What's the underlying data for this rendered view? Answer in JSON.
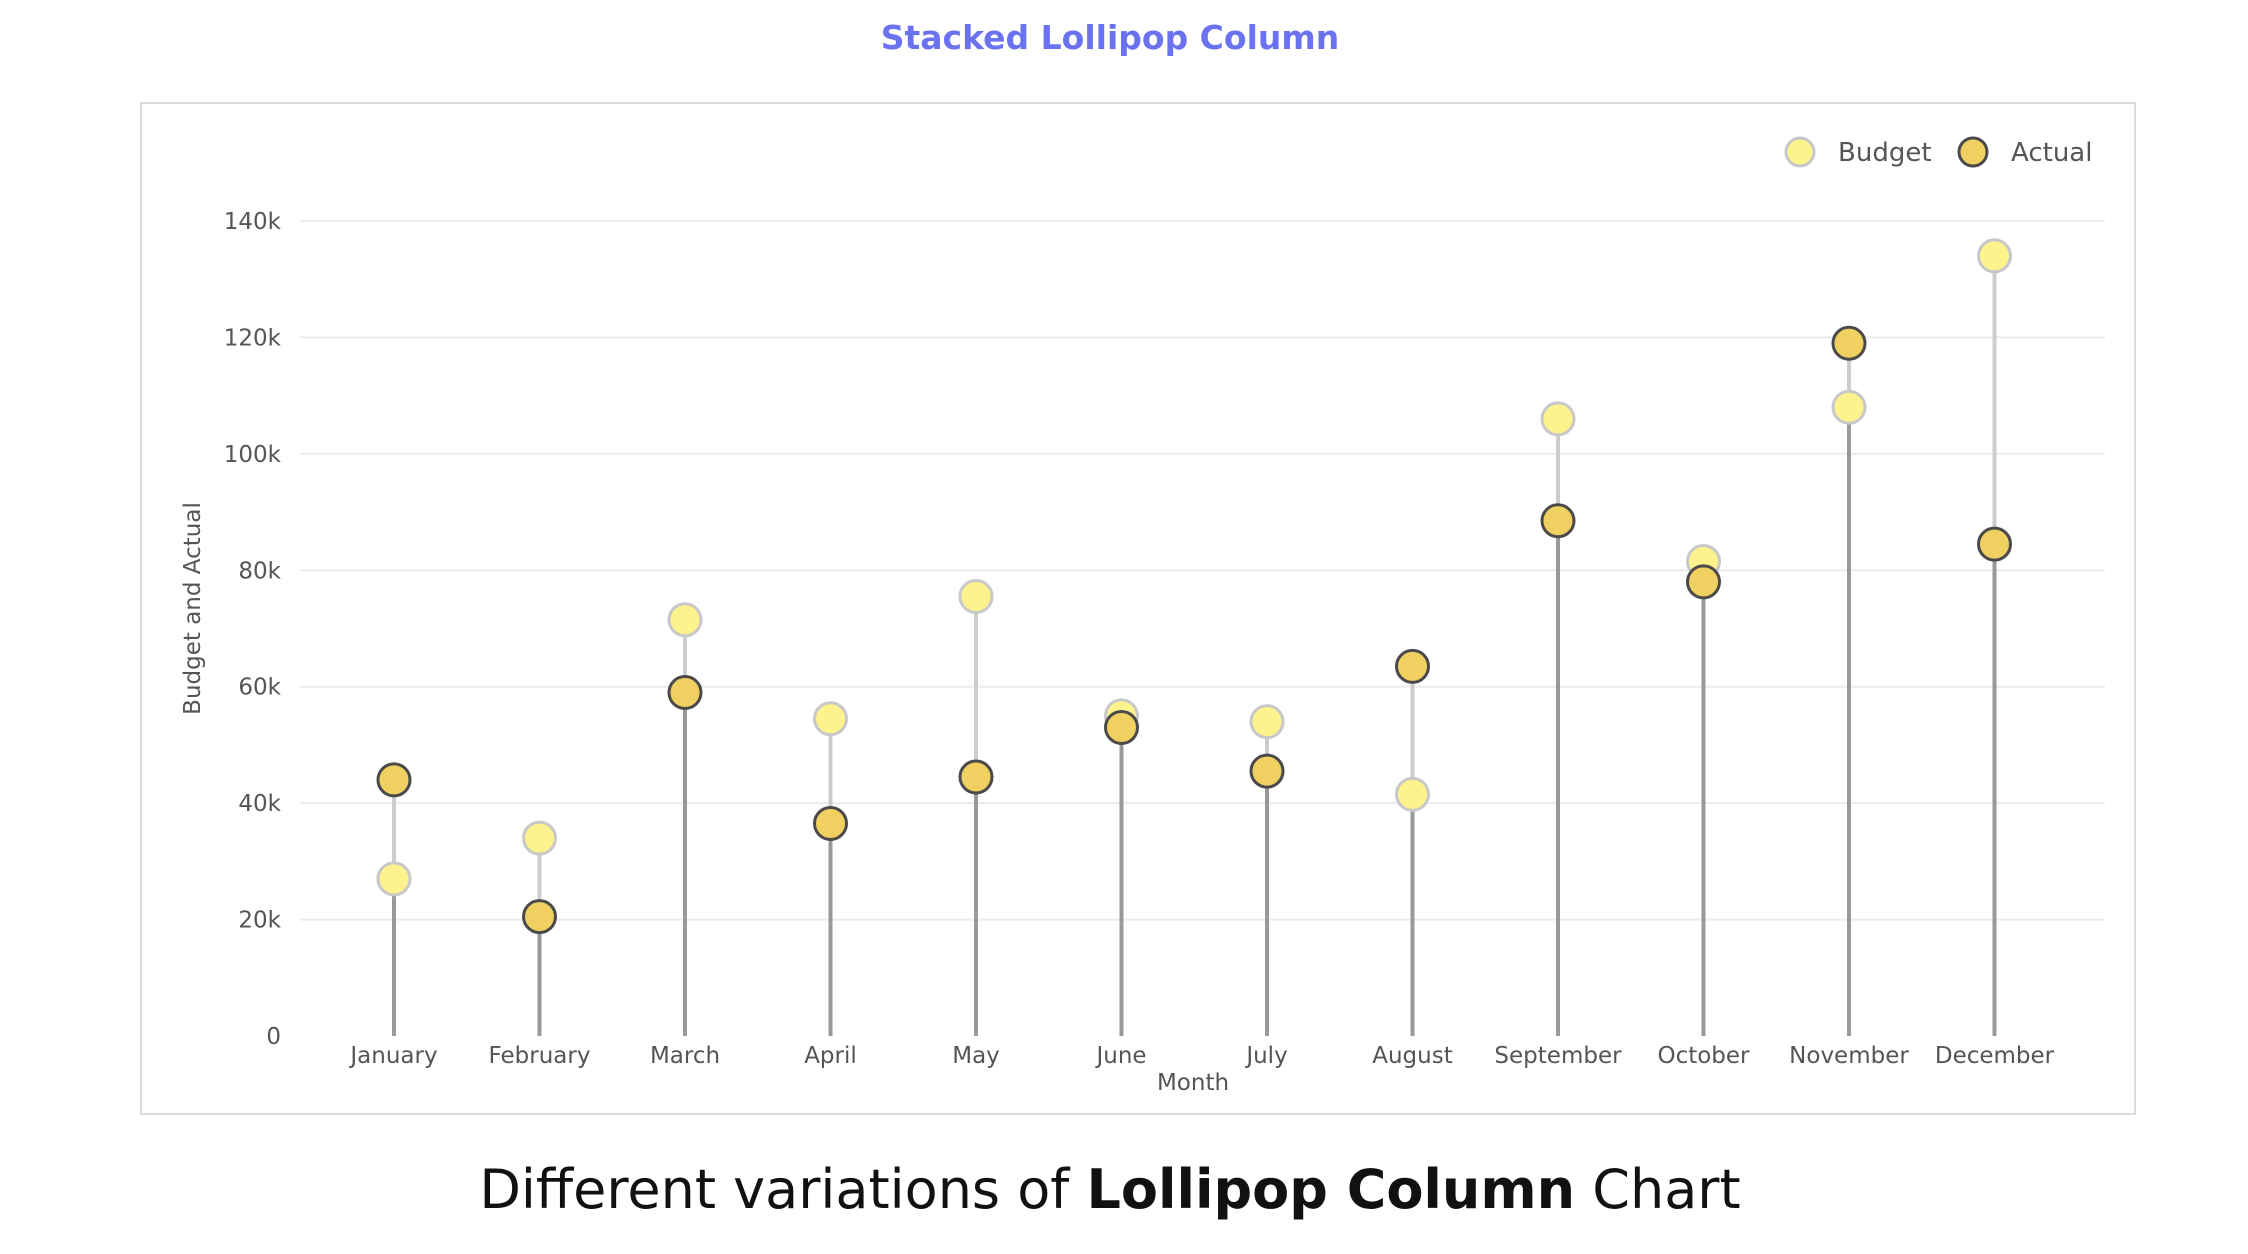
{
  "title": "Stacked Lollipop Column",
  "caption": {
    "prefix": "Different variations of ",
    "bold": "Lollipop Column",
    "suffix": " Chart"
  },
  "chart_data": {
    "type": "lollipop",
    "title": "Stacked Lollipop Column",
    "xlabel": "Month",
    "ylabel": "Budget and Actual",
    "ylim": [
      0,
      140000
    ],
    "y_ticks": [
      0,
      20000,
      40000,
      60000,
      80000,
      100000,
      120000,
      140000
    ],
    "y_tick_labels": [
      "0",
      "20k",
      "40k",
      "60k",
      "80k",
      "100k",
      "120k",
      "140k"
    ],
    "grid": true,
    "legend_position": "top-right",
    "categories": [
      "January",
      "February",
      "March",
      "April",
      "May",
      "June",
      "July",
      "August",
      "September",
      "October",
      "November",
      "December"
    ],
    "series": [
      {
        "name": "Budget",
        "color": "#fdf28c",
        "stroke": "#c8c8c8",
        "values": [
          27000,
          34000,
          71500,
          54500,
          75500,
          55000,
          54000,
          41500,
          106000,
          81500,
          108000,
          134000
        ]
      },
      {
        "name": "Actual",
        "color": "#f0d060",
        "stroke": "#4a4a4a",
        "values": [
          44000,
          20500,
          59000,
          36500,
          44500,
          53000,
          45500,
          63500,
          88500,
          78000,
          119000,
          84500
        ]
      }
    ]
  }
}
